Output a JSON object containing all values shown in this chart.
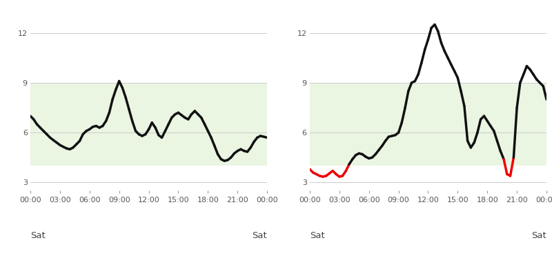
{
  "chart1": {
    "x": [
      0,
      0.33,
      0.67,
      1.0,
      1.33,
      1.67,
      2.0,
      2.33,
      2.67,
      3.0,
      3.33,
      3.67,
      4.0,
      4.33,
      4.67,
      5.0,
      5.33,
      5.67,
      6.0,
      6.33,
      6.67,
      7.0,
      7.33,
      7.67,
      8.0,
      8.33,
      8.67,
      9.0,
      9.33,
      9.67,
      10.0,
      10.33,
      10.67,
      11.0,
      11.33,
      11.67,
      12.0,
      12.33,
      12.67,
      13.0,
      13.33,
      13.67,
      14.0,
      14.33,
      14.67,
      15.0,
      15.33,
      15.67,
      16.0,
      16.33,
      16.67,
      17.0,
      17.33,
      17.67,
      18.0,
      18.33,
      18.67,
      19.0,
      19.33,
      19.67,
      20.0,
      20.33,
      20.67,
      21.0,
      21.33,
      21.67,
      22.0,
      22.33,
      22.67,
      23.0,
      23.33,
      23.67,
      24.0
    ],
    "y": [
      7.0,
      6.8,
      6.5,
      6.3,
      6.1,
      5.9,
      5.7,
      5.55,
      5.4,
      5.25,
      5.15,
      5.05,
      5.0,
      5.1,
      5.3,
      5.5,
      5.9,
      6.1,
      6.2,
      6.35,
      6.4,
      6.3,
      6.4,
      6.7,
      7.2,
      8.0,
      8.6,
      9.1,
      8.7,
      8.1,
      7.4,
      6.7,
      6.1,
      5.9,
      5.8,
      5.9,
      6.2,
      6.6,
      6.3,
      5.85,
      5.7,
      6.1,
      6.5,
      6.9,
      7.1,
      7.2,
      7.05,
      6.9,
      6.8,
      7.1,
      7.3,
      7.1,
      6.9,
      6.5,
      6.1,
      5.7,
      5.2,
      4.7,
      4.4,
      4.3,
      4.35,
      4.5,
      4.75,
      4.9,
      5.0,
      4.9,
      4.85,
      5.1,
      5.45,
      5.7,
      5.8,
      5.75,
      5.7
    ]
  },
  "chart2": {
    "x": [
      0,
      0.33,
      0.67,
      1.0,
      1.33,
      1.67,
      2.0,
      2.33,
      2.67,
      3.0,
      3.33,
      3.67,
      4.0,
      4.33,
      4.67,
      5.0,
      5.33,
      5.67,
      6.0,
      6.33,
      6.67,
      7.0,
      7.33,
      7.67,
      8.0,
      8.33,
      8.67,
      9.0,
      9.33,
      9.67,
      10.0,
      10.33,
      10.67,
      11.0,
      11.33,
      11.67,
      12.0,
      12.33,
      12.67,
      13.0,
      13.33,
      13.67,
      14.0,
      14.33,
      14.67,
      15.0,
      15.33,
      15.67,
      16.0,
      16.33,
      16.67,
      17.0,
      17.33,
      17.67,
      18.0,
      18.33,
      18.67,
      19.0,
      19.33,
      19.67,
      20.0,
      20.33,
      20.67,
      21.0,
      21.33,
      21.67,
      22.0,
      22.33,
      22.67,
      23.0,
      23.33,
      23.67,
      24.0
    ],
    "y": [
      3.8,
      3.6,
      3.5,
      3.4,
      3.35,
      3.4,
      3.55,
      3.7,
      3.5,
      3.35,
      3.4,
      3.7,
      4.1,
      4.4,
      4.65,
      4.75,
      4.7,
      4.55,
      4.45,
      4.5,
      4.7,
      4.95,
      5.2,
      5.5,
      5.75,
      5.8,
      5.85,
      6.0,
      6.6,
      7.5,
      8.5,
      9.0,
      9.1,
      9.5,
      10.2,
      11.0,
      11.6,
      12.3,
      12.5,
      12.1,
      11.4,
      10.9,
      10.5,
      10.1,
      9.7,
      9.3,
      8.5,
      7.6,
      5.5,
      5.1,
      5.4,
      6.0,
      6.8,
      7.0,
      6.7,
      6.4,
      6.1,
      5.5,
      4.9,
      4.4,
      3.5,
      3.4,
      4.5,
      7.5,
      9.0,
      9.5,
      10.0,
      9.8,
      9.5,
      9.2,
      9.0,
      8.8,
      8.0
    ]
  },
  "target_low": 4.0,
  "target_high": 9.0,
  "ylim": [
    2.5,
    13.5
  ],
  "xlim": [
    0,
    24
  ],
  "y_ticks": [
    3,
    6,
    9,
    12
  ],
  "x_ticks": [
    0,
    3,
    6,
    9,
    12,
    15,
    18,
    21,
    24
  ],
  "x_tick_labels": [
    "00:00",
    "03:00",
    "06:00",
    "09:00",
    "12:00",
    "15:00",
    "18:00",
    "21:00",
    "00:00"
  ],
  "day_label_left": "Sat",
  "day_label_right": "Sat",
  "line_color_normal": "#111111",
  "line_color_low": "#ee0000",
  "target_band_color": "#eaf5e2",
  "grid_color": "#cccccc",
  "bg_color": "#ffffff",
  "line_width": 2.5,
  "tick_fontsize": 8.0,
  "day_fontsize": 9.5
}
